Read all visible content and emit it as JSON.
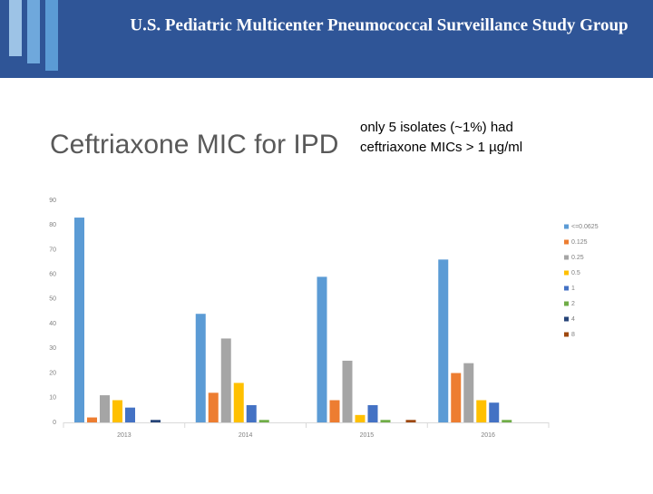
{
  "header": {
    "title": "U.S. Pediatric Multicenter Pneumococcal Surveillance Study Group"
  },
  "annotation": {
    "line1": "only 5 isolates (~1%) had",
    "line2": "ceftriaxone MICs > 1 µg/ml"
  },
  "chart_data": {
    "type": "bar",
    "title": "Ceftriaxone MIC for IPD",
    "categories": [
      "2013",
      "2014",
      "2015",
      "2016"
    ],
    "series": [
      {
        "name": "<=0.0625",
        "color": "#5b9bd5",
        "values": [
          83,
          44,
          59,
          66
        ]
      },
      {
        "name": "0.125",
        "color": "#ed7d31",
        "values": [
          2,
          12,
          9,
          20
        ]
      },
      {
        "name": "0.25",
        "color": "#a5a5a5",
        "values": [
          11,
          34,
          25,
          24
        ]
      },
      {
        "name": "0.5",
        "color": "#ffc000",
        "values": [
          9,
          16,
          3,
          9
        ]
      },
      {
        "name": "1",
        "color": "#4472c4",
        "values": [
          6,
          7,
          7,
          8
        ]
      },
      {
        "name": "2",
        "color": "#70ad47",
        "values": [
          0,
          1,
          1,
          1
        ]
      },
      {
        "name": "4",
        "color": "#264478",
        "values": [
          1,
          0,
          0,
          0
        ]
      },
      {
        "name": "8",
        "color": "#9e480e",
        "values": [
          0,
          0,
          1,
          0
        ]
      }
    ],
    "ylim": [
      0,
      90
    ],
    "yticks": [
      0,
      10,
      20,
      30,
      40,
      50,
      60,
      70,
      80,
      90
    ],
    "grid": false,
    "legend": "right"
  }
}
